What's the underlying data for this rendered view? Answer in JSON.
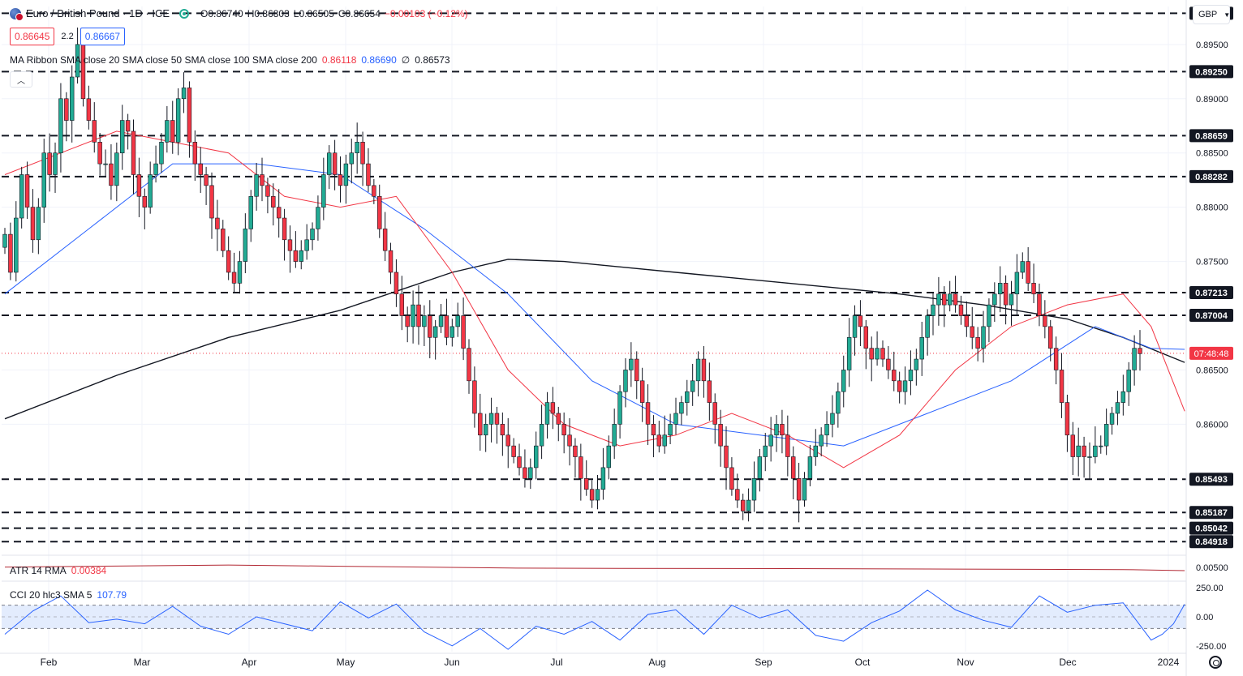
{
  "header": {
    "title": "Euro / British Pound · 1D · ICE",
    "open": "O0.86740",
    "high": "H0.86803",
    "low": "L0.86505",
    "close": "C0.86654",
    "change": "−0.00103 (−0.12%)",
    "bid": "0.86645",
    "spread": "2.2",
    "ask": "0.86667",
    "currency": "GBP"
  },
  "ma_ribbon": {
    "label": "MA Ribbon SMA close 20 SMA close 50 SMA close 100 SMA close 200",
    "v20": "0.86118",
    "v50": "0.86690",
    "v100": "∅",
    "v200": "0.86573"
  },
  "atr": {
    "label": "ATR 14 RMA",
    "value": "0.00384"
  },
  "cci": {
    "label": "CCI 20 hlc3 SMA 5",
    "value": "107.79"
  },
  "colors": {
    "up": "#22ab94",
    "down": "#f23645",
    "sma20": "#f23645",
    "sma50": "#2962ff",
    "sma200": "#131722",
    "atr": "#b22833",
    "cci": "#2962ff",
    "band": "#e3ecfd"
  },
  "chart_data": [
    {
      "type": "candlestick",
      "title": "Euro / British Pound · 1D · ICE",
      "x_ticks": [
        "Feb",
        "Mar",
        "Apr",
        "May",
        "Jun",
        "Jul",
        "Aug",
        "Sep",
        "Oct",
        "Nov",
        "Dec",
        "2024"
      ],
      "y_range": [
        0.848,
        0.8985
      ],
      "y_ticks": [
        "0.89500",
        "0.89000",
        "0.88500",
        "0.88000",
        "0.87500",
        "0.86500",
        "0.86000"
      ],
      "y_tick_values": [
        0.895,
        0.89,
        0.885,
        0.88,
        0.875,
        0.865,
        0.86
      ],
      "levels": [
        {
          "value": 0.89787,
          "label": "0.89787"
        },
        {
          "value": 0.8925,
          "label": "0.89250"
        },
        {
          "value": 0.88659,
          "label": "0.88659"
        },
        {
          "value": 0.88282,
          "label": "0.88282"
        },
        {
          "value": 0.87213,
          "label": "0.87213"
        },
        {
          "value": 0.87004,
          "label": "0.87004"
        },
        {
          "value": 0.85493,
          "label": "0.85493"
        },
        {
          "value": 0.85187,
          "label": "0.85187"
        },
        {
          "value": 0.85042,
          "label": "0.85042"
        },
        {
          "value": 0.84918,
          "label": "0.84918"
        }
      ],
      "current_price": {
        "value": 0.86654,
        "label": "07:48:48"
      },
      "closes": [
        0.8775,
        0.874,
        0.879,
        0.883,
        0.88,
        0.877,
        0.88,
        0.885,
        0.883,
        0.885,
        0.89,
        0.888,
        0.892,
        0.895,
        0.89,
        0.888,
        0.886,
        0.884,
        0.884,
        0.882,
        0.885,
        0.888,
        0.887,
        0.883,
        0.881,
        0.88,
        0.883,
        0.884,
        0.886,
        0.888,
        0.886,
        0.89,
        0.891,
        0.886,
        0.884,
        0.883,
        0.882,
        0.879,
        0.878,
        0.876,
        0.874,
        0.873,
        0.875,
        0.878,
        0.881,
        0.883,
        0.882,
        0.881,
        0.88,
        0.879,
        0.877,
        0.876,
        0.875,
        0.876,
        0.877,
        0.878,
        0.88,
        0.883,
        0.885,
        0.883,
        0.882,
        0.884,
        0.885,
        0.886,
        0.884,
        0.882,
        0.881,
        0.878,
        0.876,
        0.874,
        0.872,
        0.87,
        0.869,
        0.871,
        0.869,
        0.87,
        0.868,
        0.869,
        0.87,
        0.868,
        0.869,
        0.87,
        0.867,
        0.864,
        0.861,
        0.859,
        0.86,
        0.861,
        0.86,
        0.859,
        0.858,
        0.857,
        0.856,
        0.855,
        0.856,
        0.858,
        0.86,
        0.862,
        0.861,
        0.86,
        0.859,
        0.858,
        0.857,
        0.855,
        0.854,
        0.853,
        0.854,
        0.856,
        0.858,
        0.86,
        0.863,
        0.865,
        0.866,
        0.864,
        0.862,
        0.86,
        0.859,
        0.858,
        0.859,
        0.86,
        0.861,
        0.862,
        0.863,
        0.864,
        0.866,
        0.864,
        0.862,
        0.86,
        0.858,
        0.856,
        0.854,
        0.853,
        0.852,
        0.853,
        0.855,
        0.857,
        0.858,
        0.859,
        0.86,
        0.859,
        0.857,
        0.855,
        0.853,
        0.855,
        0.857,
        0.858,
        0.859,
        0.86,
        0.861,
        0.863,
        0.865,
        0.868,
        0.87,
        0.869,
        0.867,
        0.866,
        0.867,
        0.866,
        0.865,
        0.864,
        0.863,
        0.864,
        0.865,
        0.866,
        0.868,
        0.87,
        0.871,
        0.872,
        0.871,
        0.872,
        0.871,
        0.87,
        0.869,
        0.868,
        0.867,
        0.869,
        0.871,
        0.872,
        0.873,
        0.871,
        0.872,
        0.874,
        0.875,
        0.873,
        0.872,
        0.87,
        0.869,
        0.867,
        0.865,
        0.862,
        0.859,
        0.857,
        0.858,
        0.857,
        0.857,
        0.858,
        0.858,
        0.86,
        0.861,
        0.862,
        0.863,
        0.865,
        0.867,
        0.8665
      ],
      "sma20": [
        [
          0,
          0.883
        ],
        [
          10,
          0.885
        ],
        [
          20,
          0.887
        ],
        [
          30,
          0.886
        ],
        [
          40,
          0.885
        ],
        [
          50,
          0.881
        ],
        [
          60,
          0.88
        ],
        [
          70,
          0.881
        ],
        [
          80,
          0.874
        ],
        [
          90,
          0.865
        ],
        [
          100,
          0.86
        ],
        [
          110,
          0.858
        ],
        [
          120,
          0.859
        ],
        [
          130,
          0.861
        ],
        [
          140,
          0.859
        ],
        [
          150,
          0.856
        ],
        [
          160,
          0.859
        ],
        [
          170,
          0.865
        ],
        [
          180,
          0.869
        ],
        [
          190,
          0.871
        ],
        [
          200,
          0.872
        ],
        [
          205,
          0.869
        ],
        [
          211,
          0.8612
        ]
      ],
      "sma50": [
        [
          0,
          0.872
        ],
        [
          15,
          0.878
        ],
        [
          30,
          0.884
        ],
        [
          45,
          0.884
        ],
        [
          60,
          0.883
        ],
        [
          75,
          0.878
        ],
        [
          90,
          0.872
        ],
        [
          105,
          0.864
        ],
        [
          120,
          0.86
        ],
        [
          135,
          0.859
        ],
        [
          150,
          0.858
        ],
        [
          165,
          0.861
        ],
        [
          180,
          0.864
        ],
        [
          195,
          0.869
        ],
        [
          205,
          0.867
        ],
        [
          211,
          0.8669
        ]
      ],
      "sma200": [
        [
          0,
          0.8605
        ],
        [
          20,
          0.8645
        ],
        [
          40,
          0.868
        ],
        [
          60,
          0.8705
        ],
        [
          80,
          0.874
        ],
        [
          90,
          0.8752
        ],
        [
          100,
          0.875
        ],
        [
          120,
          0.874
        ],
        [
          140,
          0.873
        ],
        [
          160,
          0.872
        ],
        [
          175,
          0.871
        ],
        [
          190,
          0.8697
        ],
        [
          200,
          0.868
        ],
        [
          211,
          0.8657
        ]
      ],
      "atr_range": [
        0,
        0.0095
      ],
      "atr_ticks": [
        "0.00500"
      ],
      "atr_tick_values": [
        0.005
      ],
      "atr": [
        [
          0,
          0.0052
        ],
        [
          30,
          0.0058
        ],
        [
          40,
          0.006
        ],
        [
          60,
          0.0055
        ],
        [
          90,
          0.0048
        ],
        [
          110,
          0.0047
        ],
        [
          140,
          0.0046
        ],
        [
          170,
          0.0044
        ],
        [
          200,
          0.0042
        ],
        [
          211,
          0.0038
        ]
      ],
      "cci_range": [
        -300,
        300
      ],
      "cci_ticks": [
        "250.00",
        "0.00",
        "-250.00"
      ],
      "cci_tick_values": [
        250,
        0,
        -250
      ],
      "cci_band": [
        100,
        -100
      ],
      "cci": [
        [
          0,
          -150
        ],
        [
          5,
          50
        ],
        [
          10,
          180
        ],
        [
          15,
          -50
        ],
        [
          20,
          -20
        ],
        [
          25,
          -60
        ],
        [
          30,
          90
        ],
        [
          35,
          -80
        ],
        [
          40,
          -150
        ],
        [
          45,
          0
        ],
        [
          50,
          -60
        ],
        [
          55,
          -120
        ],
        [
          60,
          130
        ],
        [
          65,
          -10
        ],
        [
          70,
          110
        ],
        [
          75,
          -130
        ],
        [
          80,
          -250
        ],
        [
          85,
          -100
        ],
        [
          90,
          -280
        ],
        [
          95,
          -80
        ],
        [
          100,
          -150
        ],
        [
          105,
          -40
        ],
        [
          110,
          -200
        ],
        [
          115,
          20
        ],
        [
          120,
          60
        ],
        [
          125,
          -150
        ],
        [
          130,
          100
        ],
        [
          135,
          -10
        ],
        [
          140,
          60
        ],
        [
          145,
          -160
        ],
        [
          150,
          -210
        ],
        [
          155,
          -50
        ],
        [
          160,
          50
        ],
        [
          165,
          230
        ],
        [
          170,
          60
        ],
        [
          175,
          -30
        ],
        [
          180,
          -90
        ],
        [
          185,
          180
        ],
        [
          190,
          40
        ],
        [
          195,
          100
        ],
        [
          200,
          120
        ],
        [
          205,
          -200
        ],
        [
          207,
          -150
        ],
        [
          209,
          -60
        ],
        [
          211,
          108
        ]
      ]
    }
  ]
}
